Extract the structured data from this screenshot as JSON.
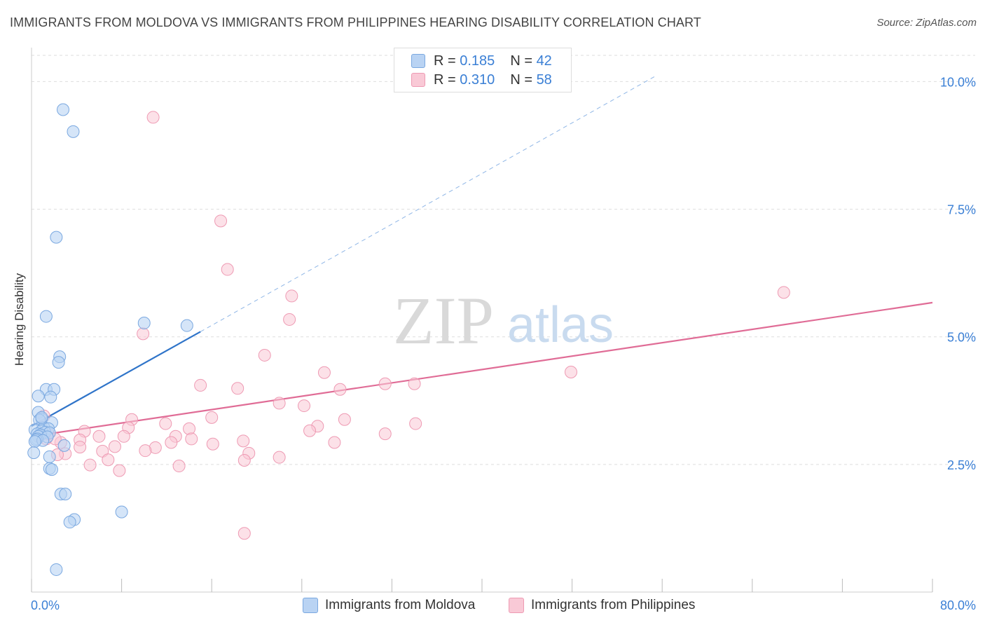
{
  "title": "IMMIGRANTS FROM MOLDOVA VS IMMIGRANTS FROM PHILIPPINES HEARING DISABILITY CORRELATION CHART",
  "source": "Source: ZipAtlas.com",
  "watermark": {
    "zip": "ZIP",
    "atlas": "atlas"
  },
  "legend": {
    "rows": [
      {
        "r_label": "R =",
        "r_value": "0.185",
        "n_label": "N =",
        "n_value": "42"
      },
      {
        "r_label": "R =",
        "r_value": "0.310",
        "n_label": "N =",
        "n_value": "58"
      }
    ]
  },
  "colors": {
    "moldova_fill": "#b9d3f3",
    "moldova_stroke": "#7aa8e0",
    "moldova_line": "#2f74c9",
    "philippines_fill": "#f9c9d6",
    "philippines_stroke": "#ee9ab3",
    "philippines_line": "#e06c96",
    "tick_label": "#3a7fd5",
    "grid": "#dddddd"
  },
  "chart_data": {
    "type": "scatter",
    "title": "IMMIGRANTS FROM MOLDOVA VS IMMIGRANTS FROM PHILIPPINES HEARING DISABILITY CORRELATION CHART",
    "xlabel": "",
    "ylabel": "Hearing Disability",
    "xlim": [
      0,
      80
    ],
    "ylim": [
      0,
      10.5
    ],
    "x_tick_labels": [
      "0.0%",
      "80.0%"
    ],
    "y_ticks": [
      2.5,
      5.0,
      7.5,
      10.0
    ],
    "y_tick_labels": [
      "2.5%",
      "5.0%",
      "7.5%",
      "10.0%"
    ],
    "grid": true,
    "series": [
      {
        "name": "Immigrants from Moldova",
        "points": [
          [
            2.8,
            9.45
          ],
          [
            3.7,
            9.02
          ],
          [
            2.2,
            6.95
          ],
          [
            1.3,
            5.4
          ],
          [
            10.0,
            5.27
          ],
          [
            13.8,
            5.22
          ],
          [
            2.5,
            4.61
          ],
          [
            2.4,
            4.5
          ],
          [
            1.3,
            3.97
          ],
          [
            2.0,
            3.97
          ],
          [
            0.6,
            3.84
          ],
          [
            1.7,
            3.82
          ],
          [
            0.6,
            3.52
          ],
          [
            0.9,
            3.39
          ],
          [
            0.7,
            3.37
          ],
          [
            1.8,
            3.32
          ],
          [
            1.1,
            3.22
          ],
          [
            1.5,
            3.2
          ],
          [
            0.3,
            3.18
          ],
          [
            0.9,
            3.16
          ],
          [
            1.2,
            3.13
          ],
          [
            1.6,
            3.12
          ],
          [
            0.5,
            3.1
          ],
          [
            0.8,
            3.08
          ],
          [
            0.6,
            3.05
          ],
          [
            1.4,
            3.04
          ],
          [
            0.5,
            3.0
          ],
          [
            0.4,
            2.98
          ],
          [
            1.0,
            2.97
          ],
          [
            0.3,
            2.95
          ],
          [
            2.9,
            2.87
          ],
          [
            0.2,
            2.73
          ],
          [
            1.6,
            2.65
          ],
          [
            1.6,
            2.42
          ],
          [
            1.8,
            2.4
          ],
          [
            2.6,
            1.92
          ],
          [
            3.0,
            1.92
          ],
          [
            8.0,
            1.57
          ],
          [
            3.8,
            1.42
          ],
          [
            3.4,
            1.37
          ],
          [
            2.2,
            0.44
          ],
          [
            0.9,
            3.42
          ]
        ],
        "trend": {
          "x": [
            0.0,
            15.0
          ],
          "y": [
            3.25,
            5.1
          ],
          "extended": {
            "x": [
              15.0,
              55.5
            ],
            "y": [
              5.1,
              10.12
            ]
          }
        }
      },
      {
        "name": "Immigrants from Philippines",
        "points": [
          [
            10.8,
            9.3
          ],
          [
            16.8,
            7.27
          ],
          [
            17.4,
            6.32
          ],
          [
            66.8,
            5.87
          ],
          [
            23.1,
            5.8
          ],
          [
            22.9,
            5.34
          ],
          [
            9.9,
            5.06
          ],
          [
            20.7,
            4.64
          ],
          [
            26.0,
            4.3
          ],
          [
            47.9,
            4.31
          ],
          [
            31.4,
            4.08
          ],
          [
            34.0,
            4.08
          ],
          [
            15.0,
            4.05
          ],
          [
            18.3,
            3.99
          ],
          [
            27.4,
            3.97
          ],
          [
            22.0,
            3.7
          ],
          [
            24.2,
            3.65
          ],
          [
            8.9,
            3.38
          ],
          [
            16.0,
            3.42
          ],
          [
            27.8,
            3.38
          ],
          [
            11.9,
            3.3
          ],
          [
            34.1,
            3.3
          ],
          [
            25.4,
            3.25
          ],
          [
            8.6,
            3.22
          ],
          [
            14.0,
            3.2
          ],
          [
            4.7,
            3.15
          ],
          [
            24.7,
            3.16
          ],
          [
            31.4,
            3.1
          ],
          [
            6.0,
            3.05
          ],
          [
            8.2,
            3.05
          ],
          [
            12.8,
            3.05
          ],
          [
            14.2,
            3.0
          ],
          [
            4.3,
            2.98
          ],
          [
            1.3,
            3.0
          ],
          [
            18.8,
            2.96
          ],
          [
            2.6,
            2.93
          ],
          [
            16.1,
            2.9
          ],
          [
            26.9,
            2.93
          ],
          [
            12.4,
            2.93
          ],
          [
            7.4,
            2.85
          ],
          [
            4.3,
            2.84
          ],
          [
            11.0,
            2.83
          ],
          [
            10.1,
            2.77
          ],
          [
            6.3,
            2.76
          ],
          [
            19.3,
            2.72
          ],
          [
            3.0,
            2.71
          ],
          [
            2.3,
            2.69
          ],
          [
            22.0,
            2.64
          ],
          [
            6.8,
            2.59
          ],
          [
            18.9,
            2.58
          ],
          [
            5.2,
            2.49
          ],
          [
            13.1,
            2.47
          ],
          [
            7.8,
            2.38
          ],
          [
            18.9,
            1.15
          ],
          [
            1.1,
            3.45
          ],
          [
            1.5,
            3.1
          ],
          [
            0.6,
            3.05
          ],
          [
            2.1,
            3.0
          ]
        ],
        "trend": {
          "x": [
            0.0,
            80.0
          ],
          "y": [
            3.05,
            5.67
          ]
        }
      }
    ]
  },
  "bottom_legend": {
    "moldova": "Immigrants from Moldova",
    "philippines": "Immigrants from Philippines"
  }
}
